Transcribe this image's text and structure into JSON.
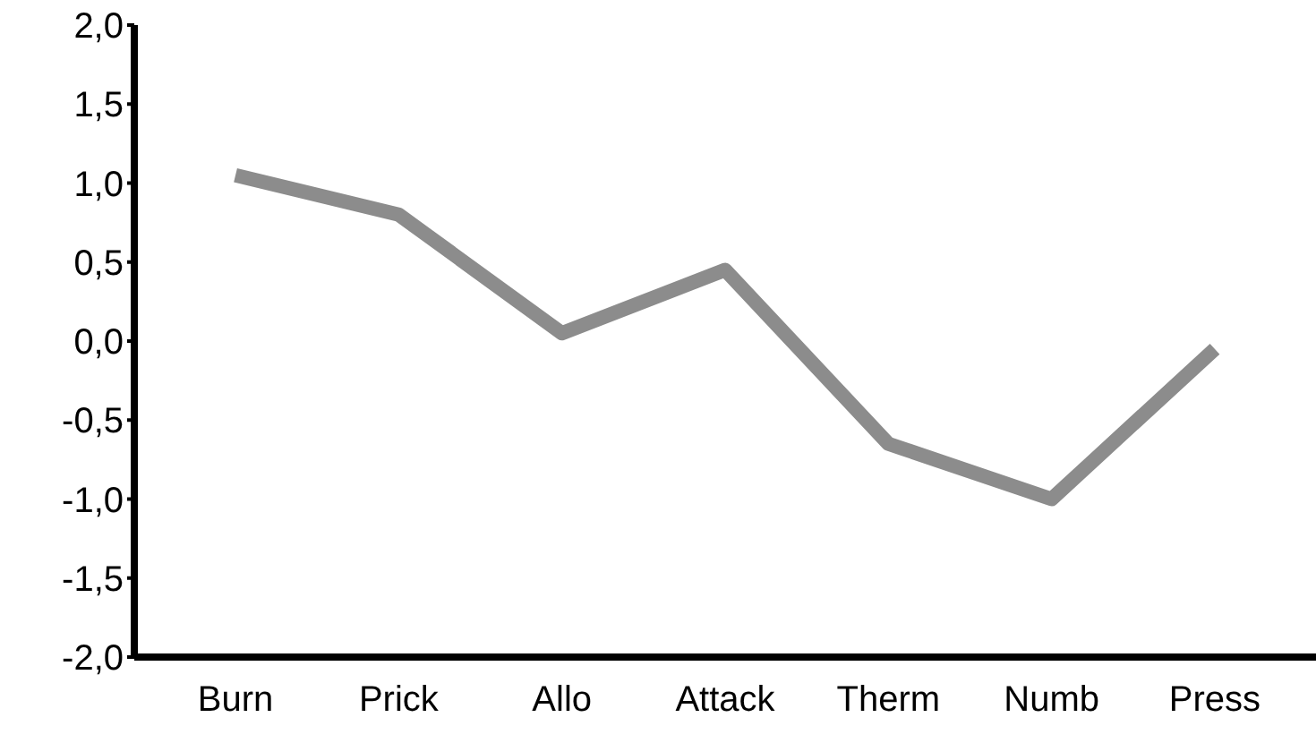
{
  "chart_data": {
    "type": "line",
    "categories": [
      "Burn",
      "Prick",
      "Allo",
      "Attack",
      "Therm",
      "Numb",
      "Press"
    ],
    "series": [
      {
        "color": "#8c8c8c",
        "values": [
          1.05,
          0.8,
          0.05,
          0.45,
          -0.65,
          -1.0,
          -0.05
        ]
      }
    ],
    "ylim": [
      -2,
      2
    ],
    "yticks": [
      {
        "value": -2,
        "label": "-2,0"
      },
      {
        "value": -1.5,
        "label": "-1,5"
      },
      {
        "value": -1,
        "label": "-1,0"
      },
      {
        "value": -0.5,
        "label": "-0,5"
      },
      {
        "value": 0,
        "label": "0,0"
      },
      {
        "value": 0.5,
        "label": "0,5"
      },
      {
        "value": 1,
        "label": "1,0"
      },
      {
        "value": 1.5,
        "label": "1,5"
      },
      {
        "value": 2,
        "label": "2,0"
      }
    ],
    "grid": false,
    "legend": false,
    "marker": "none",
    "line_style": "solid"
  }
}
